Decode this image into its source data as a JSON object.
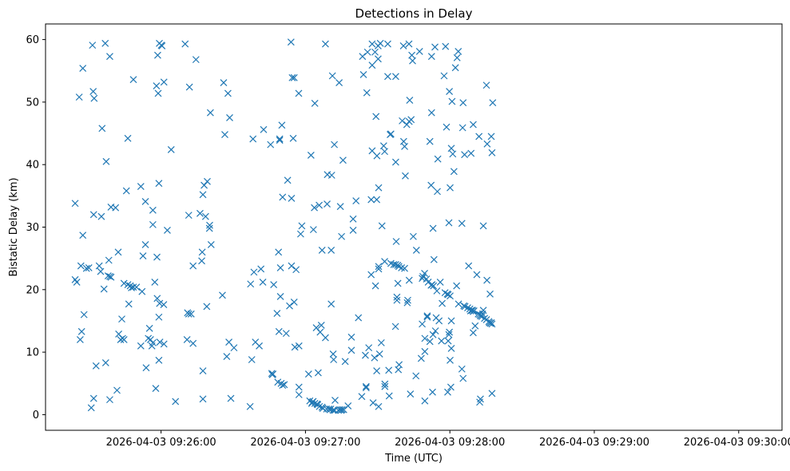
{
  "chart_data": {
    "type": "scatter",
    "title": "Detections in Delay",
    "xlabel": "Time (UTC)",
    "ylabel": "Bistatic Delay (km)",
    "marker": "x",
    "color": "#1f77b4",
    "grid": false,
    "legend": "none",
    "xlim": [
      "2026-04-03 09:25:12",
      "2026-04-03 09:30:18"
    ],
    "ylim": [
      -2.5,
      62.5
    ],
    "xticks": [
      "2026-04-03 09:26:00",
      "2026-04-03 09:27:00",
      "2026-04-03 09:28:00",
      "2026-04-03 09:29:00",
      "2026-04-03 09:30:00"
    ],
    "yticks": [
      0,
      10,
      20,
      30,
      40,
      50,
      60
    ],
    "x_unit": "seconds after 2026-04-03 09:25:00",
    "points": [
      [
        24.3,
        33.8
      ],
      [
        24.3,
        21.6
      ],
      [
        25.0,
        21.2
      ],
      [
        26.0,
        50.8
      ],
      [
        26.7,
        23.8
      ],
      [
        26.4,
        12.0
      ],
      [
        27.0,
        13.3
      ],
      [
        27.5,
        28.7
      ],
      [
        27.5,
        55.4
      ],
      [
        28.0,
        16.0
      ],
      [
        29.0,
        23.4
      ],
      [
        30.0,
        23.5
      ],
      [
        31.0,
        1.1
      ],
      [
        31.5,
        59.1
      ],
      [
        31.8,
        51.7
      ],
      [
        32.2,
        50.6
      ],
      [
        32.0,
        32.0
      ],
      [
        32.0,
        2.6
      ],
      [
        33.0,
        7.8
      ],
      [
        34.3,
        23.8
      ],
      [
        34.9,
        22.9
      ],
      [
        35.5,
        45.8
      ],
      [
        35.2,
        31.7
      ],
      [
        36.3,
        20.1
      ],
      [
        36.8,
        59.4
      ],
      [
        37.2,
        40.5
      ],
      [
        37.0,
        8.3
      ],
      [
        38.0,
        22.2
      ],
      [
        38.3,
        24.7
      ],
      [
        38.7,
        22.1
      ],
      [
        38.7,
        2.4
      ],
      [
        38.7,
        57.3
      ],
      [
        39.2,
        33.2
      ],
      [
        39.2,
        22.0
      ],
      [
        41.1,
        33.1
      ],
      [
        41.7,
        3.9
      ],
      [
        42.2,
        26.0
      ],
      [
        42.4,
        12.9
      ],
      [
        43.2,
        12.0
      ],
      [
        43.7,
        15.3
      ],
      [
        44.0,
        12.2
      ],
      [
        44.6,
        12.0
      ],
      [
        44.6,
        21.0
      ],
      [
        45.6,
        35.8
      ],
      [
        46.2,
        44.2
      ],
      [
        46.2,
        20.8
      ],
      [
        46.6,
        17.7
      ],
      [
        47.2,
        20.6
      ],
      [
        47.7,
        20.3
      ],
      [
        48.5,
        20.4
      ],
      [
        48.5,
        53.6
      ],
      [
        49.8,
        20.4
      ],
      [
        51.6,
        36.5
      ],
      [
        51.6,
        11.0
      ],
      [
        52.1,
        19.7
      ],
      [
        52.5,
        25.4
      ],
      [
        53.5,
        34.1
      ],
      [
        53.5,
        27.2
      ],
      [
        53.8,
        7.5
      ],
      [
        54.7,
        12.2
      ],
      [
        55.2,
        13.8
      ],
      [
        55.6,
        12.0
      ],
      [
        56.2,
        11.0
      ],
      [
        56.6,
        11.5
      ],
      [
        56.6,
        32.7
      ],
      [
        56.6,
        30.4
      ],
      [
        57.4,
        21.2
      ],
      [
        57.8,
        4.2
      ],
      [
        58.1,
        52.6
      ],
      [
        58.3,
        25.2
      ],
      [
        58.4,
        18.6
      ],
      [
        58.6,
        57.5
      ],
      [
        58.8,
        51.4
      ],
      [
        59.1,
        15.6
      ],
      [
        59.1,
        37.0
      ],
      [
        59.1,
        8.7
      ],
      [
        59.3,
        59.4
      ],
      [
        59.4,
        17.8
      ],
      [
        59.5,
        11.6
      ],
      [
        60.1,
        59.1
      ],
      [
        60.4,
        59.0
      ],
      [
        61.1,
        17.6
      ],
      [
        61.2,
        11.3
      ],
      [
        61.2,
        53.2
      ],
      [
        62.6,
        29.5
      ],
      [
        64.2,
        42.4
      ],
      [
        66.0,
        2.1
      ],
      [
        70.0,
        59.3
      ],
      [
        70.8,
        12.0
      ],
      [
        71.0,
        16.3
      ],
      [
        71.5,
        31.9
      ],
      [
        71.5,
        16.1
      ],
      [
        71.8,
        52.4
      ],
      [
        72.5,
        16.1
      ],
      [
        73.3,
        23.8
      ],
      [
        73.3,
        11.4
      ],
      [
        74.5,
        56.8
      ],
      [
        76.2,
        32.2
      ],
      [
        76.9,
        24.6
      ],
      [
        77.1,
        26.0
      ],
      [
        77.4,
        2.5
      ],
      [
        77.4,
        35.2
      ],
      [
        77.4,
        7.0
      ],
      [
        77.9,
        36.7
      ],
      [
        78.5,
        31.7
      ],
      [
        79.0,
        17.3
      ],
      [
        79.2,
        37.3
      ],
      [
        80.2,
        30.3
      ],
      [
        80.1,
        29.8
      ],
      [
        80.5,
        48.3
      ],
      [
        80.8,
        27.2
      ],
      [
        85.5,
        19.1
      ],
      [
        86.0,
        53.1
      ],
      [
        86.5,
        44.8
      ],
      [
        87.3,
        9.3
      ],
      [
        87.8,
        51.4
      ],
      [
        88.2,
        11.6
      ],
      [
        88.5,
        47.5
      ],
      [
        89.0,
        2.6
      ],
      [
        90.3,
        10.7
      ],
      [
        97.0,
        1.3
      ],
      [
        97.2,
        20.9
      ],
      [
        97.7,
        8.8
      ],
      [
        98.2,
        44.1
      ],
      [
        98.6,
        22.8
      ],
      [
        99.2,
        11.6
      ],
      [
        100.8,
        11.0
      ],
      [
        101.5,
        23.3
      ],
      [
        102.3,
        21.2
      ],
      [
        102.6,
        45.6
      ],
      [
        105.5,
        43.2
      ],
      [
        106.0,
        6.6
      ],
      [
        106.2,
        6.4
      ],
      [
        106.5,
        6.5
      ],
      [
        106.8,
        20.8
      ],
      [
        108.2,
        16.2
      ],
      [
        108.5,
        5.2
      ],
      [
        108.8,
        26.0
      ],
      [
        109.0,
        13.3
      ],
      [
        109.3,
        44.1
      ],
      [
        109.3,
        43.9
      ],
      [
        109.6,
        23.5
      ],
      [
        109.6,
        18.9
      ],
      [
        109.9,
        5.0
      ],
      [
        110.2,
        46.3
      ],
      [
        110.5,
        4.7
      ],
      [
        110.5,
        34.8
      ],
      [
        111.2,
        4.8
      ],
      [
        112.0,
        13.0
      ],
      [
        112.6,
        37.5
      ],
      [
        113.4,
        17.4
      ],
      [
        114.0,
        59.6
      ],
      [
        114.2,
        23.8
      ],
      [
        114.2,
        34.6
      ],
      [
        114.5,
        53.9
      ],
      [
        114.9,
        44.2
      ],
      [
        115.3,
        18.0
      ],
      [
        115.3,
        53.9
      ],
      [
        115.6,
        10.8
      ],
      [
        116.1,
        23.2
      ],
      [
        117.2,
        51.4
      ],
      [
        117.3,
        3.2
      ],
      [
        117.3,
        11.0
      ],
      [
        117.3,
        4.4
      ],
      [
        118.0,
        28.9
      ],
      [
        118.5,
        30.2
      ],
      [
        121.3,
        6.5
      ],
      [
        121.8,
        2.2
      ],
      [
        122.3,
        41.5
      ],
      [
        122.6,
        1.8
      ],
      [
        122.8,
        2.0
      ],
      [
        123.2,
        2.1
      ],
      [
        123.3,
        29.6
      ],
      [
        123.7,
        33.1
      ],
      [
        123.9,
        49.8
      ],
      [
        123.9,
        1.8
      ],
      [
        124.5,
        13.9
      ],
      [
        124.8,
        1.7
      ],
      [
        125.1,
        1.6
      ],
      [
        125.3,
        6.7
      ],
      [
        125.7,
        33.5
      ],
      [
        125.8,
        1.3
      ],
      [
        126.1,
        13.2
      ],
      [
        126.6,
        14.3
      ],
      [
        126.9,
        1.2
      ],
      [
        126.9,
        26.3
      ],
      [
        127.2,
        1.0
      ],
      [
        128.3,
        12.3
      ],
      [
        128.3,
        59.3
      ],
      [
        128.8,
        0.9
      ],
      [
        129.0,
        33.7
      ],
      [
        129.1,
        38.4
      ],
      [
        129.7,
        0.9
      ],
      [
        130.2,
        0.8
      ],
      [
        130.5,
        0.9
      ],
      [
        130.7,
        26.3
      ],
      [
        130.7,
        17.7
      ],
      [
        130.9,
        38.3
      ],
      [
        131.2,
        54.2
      ],
      [
        131.5,
        0.7
      ],
      [
        131.5,
        9.7
      ],
      [
        131.7,
        8.8
      ],
      [
        132.0,
        43.2
      ],
      [
        132.1,
        0.7
      ],
      [
        132.3,
        2.3
      ],
      [
        133.7,
        0.7
      ],
      [
        134.0,
        53.1
      ],
      [
        134.3,
        0.8
      ],
      [
        134.5,
        33.3
      ],
      [
        134.8,
        0.7
      ],
      [
        135.0,
        28.5
      ],
      [
        135.2,
        0.8
      ],
      [
        135.6,
        40.7
      ],
      [
        135.9,
        0.8
      ],
      [
        136.5,
        8.5
      ],
      [
        137.7,
        1.4
      ],
      [
        139.1,
        12.4
      ],
      [
        139.1,
        10.3
      ],
      [
        139.8,
        29.5
      ],
      [
        139.8,
        31.3
      ],
      [
        141.0,
        34.2
      ],
      [
        142.0,
        15.5
      ],
      [
        143.4,
        2.9
      ],
      [
        143.7,
        57.3
      ],
      [
        144.1,
        54.4
      ],
      [
        144.9,
        9.5
      ],
      [
        145.2,
        4.5
      ],
      [
        145.2,
        4.3
      ],
      [
        145.5,
        51.5
      ],
      [
        145.8,
        58.0
      ],
      [
        146.3,
        10.7
      ],
      [
        147.3,
        34.4
      ],
      [
        147.3,
        22.4
      ],
      [
        147.7,
        42.2
      ],
      [
        147.7,
        59.3
      ],
      [
        147.7,
        55.9
      ],
      [
        148.1,
        1.9
      ],
      [
        148.7,
        9.1
      ],
      [
        148.9,
        58.0
      ],
      [
        149.1,
        20.6
      ],
      [
        149.3,
        47.7
      ],
      [
        149.6,
        7.0
      ],
      [
        149.6,
        34.4
      ],
      [
        149.7,
        41.4
      ],
      [
        150.2,
        59.0
      ],
      [
        150.2,
        56.9
      ],
      [
        150.4,
        36.3
      ],
      [
        150.4,
        23.7
      ],
      [
        150.4,
        1.3
      ],
      [
        150.4,
        23.3
      ],
      [
        150.8,
        9.7
      ],
      [
        151.1,
        59.4
      ],
      [
        151.5,
        11.5
      ],
      [
        151.8,
        30.2
      ],
      [
        152.5,
        43.0
      ],
      [
        152.9,
        42.1
      ],
      [
        152.9,
        24.5
      ],
      [
        153.0,
        4.9
      ],
      [
        153.0,
        4.5
      ],
      [
        154.2,
        59.3
      ],
      [
        154.2,
        54.1
      ],
      [
        154.6,
        7.1
      ],
      [
        154.8,
        3.0
      ],
      [
        155.2,
        44.8
      ],
      [
        155.5,
        24.2
      ],
      [
        155.5,
        44.9
      ],
      [
        156.7,
        24.0
      ],
      [
        157.4,
        14.1
      ],
      [
        157.5,
        54.1
      ],
      [
        157.5,
        24.0
      ],
      [
        157.5,
        40.4
      ],
      [
        157.7,
        27.7
      ],
      [
        158.0,
        18.8
      ],
      [
        158.0,
        18.3
      ],
      [
        158.3,
        23.9
      ],
      [
        158.4,
        21.0
      ],
      [
        158.6,
        7.2
      ],
      [
        158.8,
        23.7
      ],
      [
        158.9,
        8.0
      ],
      [
        159.9,
        23.5
      ],
      [
        160.2,
        47.0
      ],
      [
        160.7,
        59.0
      ],
      [
        160.8,
        43.7
      ],
      [
        161.2,
        23.4
      ],
      [
        161.2,
        42.9
      ],
      [
        161.5,
        38.2
      ],
      [
        162.1,
        46.4
      ],
      [
        162.3,
        17.9
      ],
      [
        162.5,
        18.3
      ],
      [
        163.0,
        59.3
      ],
      [
        163.1,
        21.5
      ],
      [
        163.1,
        46.9
      ],
      [
        163.3,
        50.3
      ],
      [
        163.6,
        3.3
      ],
      [
        163.9,
        47.2
      ],
      [
        164.2,
        57.5
      ],
      [
        164.5,
        56.6
      ],
      [
        164.8,
        28.5
      ],
      [
        165.9,
        6.2
      ],
      [
        166.1,
        26.3
      ],
      [
        167.4,
        58.1
      ],
      [
        168.1,
        9.0
      ],
      [
        168.5,
        21.8
      ],
      [
        168.5,
        14.5
      ],
      [
        168.8,
        22.1
      ],
      [
        169.5,
        22.6
      ],
      [
        169.6,
        2.2
      ],
      [
        169.6,
        10.1
      ],
      [
        169.6,
        12.2
      ],
      [
        170.3,
        21.7
      ],
      [
        170.6,
        15.8
      ],
      [
        170.6,
        15.6
      ],
      [
        171.0,
        21.2
      ],
      [
        171.7,
        11.7
      ],
      [
        171.7,
        43.7
      ],
      [
        172.2,
        20.7
      ],
      [
        172.2,
        36.7
      ],
      [
        172.4,
        48.3
      ],
      [
        172.4,
        57.3
      ],
      [
        172.6,
        20.8
      ],
      [
        172.8,
        3.6
      ],
      [
        173.0,
        29.8
      ],
      [
        173.0,
        12.8
      ],
      [
        173.2,
        20.6
      ],
      [
        173.4,
        24.8
      ],
      [
        173.8,
        58.8
      ],
      [
        174.0,
        13.4
      ],
      [
        174.3,
        15.5
      ],
      [
        174.6,
        19.8
      ],
      [
        174.8,
        35.7
      ],
      [
        175.0,
        40.9
      ],
      [
        175.5,
        15.0
      ],
      [
        176.0,
        21.2
      ],
      [
        176.5,
        11.8
      ],
      [
        176.8,
        17.8
      ],
      [
        177.6,
        54.2
      ],
      [
        178.0,
        19.5
      ],
      [
        178.2,
        58.9
      ],
      [
        178.6,
        46.0
      ],
      [
        178.9,
        19.3
      ],
      [
        179.1,
        3.6
      ],
      [
        179.3,
        11.8
      ],
      [
        179.3,
        19.2
      ],
      [
        179.6,
        12.8
      ],
      [
        179.6,
        30.7
      ],
      [
        179.8,
        51.7
      ],
      [
        179.8,
        13.2
      ],
      [
        180.1,
        19.0
      ],
      [
        180.1,
        36.3
      ],
      [
        180.1,
        8.7
      ],
      [
        180.4,
        4.4
      ],
      [
        180.6,
        10.6
      ],
      [
        180.6,
        42.6
      ],
      [
        180.6,
        15.0
      ],
      [
        180.9,
        50.1
      ],
      [
        181.2,
        41.7
      ],
      [
        181.7,
        38.9
      ],
      [
        182.3,
        55.5
      ],
      [
        182.8,
        20.6
      ],
      [
        183.0,
        57.1
      ],
      [
        183.5,
        58.1
      ],
      [
        183.6,
        17.7
      ],
      [
        185.0,
        30.6
      ],
      [
        185.0,
        7.3
      ],
      [
        185.3,
        45.9
      ],
      [
        185.5,
        5.8
      ],
      [
        185.5,
        49.9
      ],
      [
        185.8,
        17.4
      ],
      [
        186.1,
        41.6
      ],
      [
        186.3,
        17.3
      ],
      [
        187.4,
        17.1
      ],
      [
        187.8,
        23.8
      ],
      [
        188.3,
        16.9
      ],
      [
        188.6,
        16.6
      ],
      [
        188.8,
        41.8
      ],
      [
        189.1,
        16.7
      ],
      [
        189.4,
        16.7
      ],
      [
        189.7,
        46.4
      ],
      [
        189.7,
        13.1
      ],
      [
        189.7,
        16.5
      ],
      [
        190.0,
        16.6
      ],
      [
        190.5,
        14.2
      ],
      [
        191.2,
        22.4
      ],
      [
        191.8,
        16.1
      ],
      [
        192.1,
        44.5
      ],
      [
        192.4,
        2.0
      ],
      [
        192.4,
        16.0
      ],
      [
        192.7,
        15.8
      ],
      [
        192.7,
        2.5
      ],
      [
        193.0,
        15.9
      ],
      [
        193.3,
        15.7
      ],
      [
        193.6,
        16.1
      ],
      [
        193.9,
        30.2
      ],
      [
        193.9,
        16.7
      ],
      [
        194.4,
        15.4
      ],
      [
        195.2,
        15.2
      ],
      [
        195.2,
        52.7
      ],
      [
        195.4,
        21.5
      ],
      [
        195.5,
        43.3
      ],
      [
        196.2,
        14.9
      ],
      [
        196.4,
        14.7
      ],
      [
        196.7,
        19.3
      ],
      [
        196.9,
        14.6
      ],
      [
        197.2,
        44.5
      ],
      [
        197.2,
        14.7
      ],
      [
        197.5,
        14.5
      ],
      [
        197.5,
        3.4
      ],
      [
        197.5,
        41.9
      ],
      [
        197.8,
        49.9
      ]
    ]
  }
}
